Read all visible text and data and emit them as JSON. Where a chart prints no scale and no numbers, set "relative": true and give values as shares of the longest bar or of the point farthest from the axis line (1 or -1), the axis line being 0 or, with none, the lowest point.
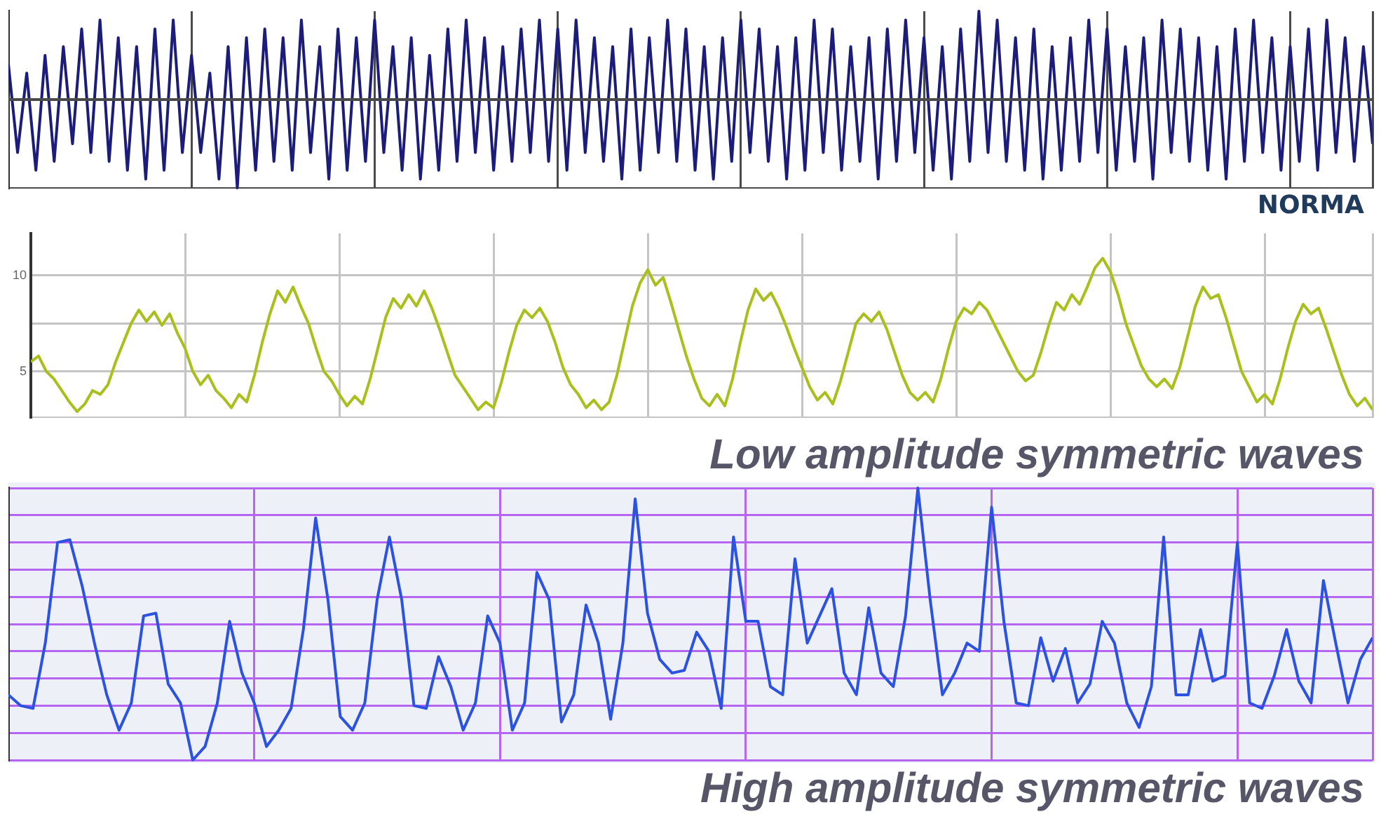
{
  "chart_data": [
    {
      "type": "line",
      "relative": true,
      "grid": "x",
      "legend": false,
      "tick_labels": false,
      "marker": "none",
      "annotations": [
        "NORMA"
      ],
      "categories": [
        null,
        null,
        null,
        null,
        null,
        null,
        null,
        null,
        null,
        null,
        null,
        null,
        null,
        null,
        null,
        null,
        null,
        null,
        null,
        null,
        null,
        null,
        null,
        null,
        null,
        null,
        null,
        null,
        null,
        null,
        null,
        null,
        null,
        null,
        null,
        null,
        null,
        null,
        null,
        null,
        null,
        null,
        null,
        null,
        null,
        null,
        null,
        null,
        null,
        null,
        null,
        null,
        null,
        null,
        null,
        null,
        null,
        null,
        null,
        null,
        null,
        null,
        null,
        null,
        null,
        null,
        null,
        null,
        null,
        null,
        null,
        null,
        null,
        null,
        null,
        null,
        null,
        null,
        null,
        null,
        null,
        null,
        null,
        null,
        null,
        null,
        null,
        null,
        null,
        null,
        null,
        null,
        null,
        null,
        null,
        null,
        null,
        null,
        null,
        null,
        null,
        null,
        null,
        null,
        null,
        null,
        null,
        null,
        null,
        null,
        null,
        null,
        null,
        null,
        null,
        null,
        null,
        null,
        null,
        null,
        null,
        null,
        null,
        null,
        null,
        null,
        null,
        null,
        null,
        null,
        null,
        null,
        null,
        null,
        null,
        null,
        null,
        null,
        null,
        null,
        null,
        null,
        null,
        null,
        null,
        null,
        null,
        null,
        null,
        null
      ],
      "series": [
        {
          "color": "#1c1c7a",
          "values": [
            0.4,
            -0.6,
            0.3,
            -0.8,
            0.5,
            -0.7,
            0.6,
            -0.5,
            0.8,
            -0.6,
            0.9,
            -0.7,
            0.7,
            -0.8,
            0.6,
            -0.9,
            0.8,
            -0.8,
            0.9,
            -0.6,
            0.5,
            -0.6,
            0.3,
            -0.9,
            0.6,
            -1.0,
            0.7,
            -0.8,
            0.8,
            -0.7,
            0.7,
            -0.8,
            0.9,
            -0.6,
            0.6,
            -0.9,
            0.8,
            -0.8,
            0.7,
            -0.7,
            0.9,
            -0.6,
            0.6,
            -0.8,
            0.7,
            -0.9,
            0.5,
            -0.8,
            0.8,
            -0.7,
            0.9,
            -0.6,
            0.7,
            -0.8,
            0.6,
            -0.7,
            0.8,
            -0.6,
            0.9,
            -0.7,
            0.8,
            -0.8,
            0.9,
            -0.6,
            0.7,
            -0.7,
            0.6,
            -0.9,
            0.8,
            -0.8,
            0.7,
            -0.6,
            0.9,
            -0.7,
            0.8,
            -0.8,
            0.6,
            -0.9,
            0.7,
            -0.7,
            0.9,
            -0.6,
            0.8,
            -0.7,
            0.6,
            -0.9,
            0.7,
            -0.8,
            0.9,
            -0.6,
            0.8,
            -0.8,
            0.6,
            -0.7,
            0.7,
            -0.9,
            0.8,
            -0.7,
            0.9,
            -0.6,
            0.7,
            -0.8,
            0.6,
            -0.9,
            0.8,
            -0.7,
            1.0,
            -0.6,
            0.9,
            -0.7,
            0.7,
            -0.8,
            0.8,
            -0.9,
            0.6,
            -0.8,
            0.7,
            -0.7,
            0.9,
            -0.6,
            0.8,
            -0.8,
            0.6,
            -0.7,
            0.7,
            -0.9,
            0.9,
            -0.6,
            0.8,
            -0.7,
            0.7,
            -0.8,
            0.6,
            -0.9,
            0.8,
            -0.7,
            0.9,
            -0.6,
            0.7,
            -0.8,
            0.6,
            -0.7,
            0.8,
            -0.8,
            0.9,
            -0.6,
            0.7,
            -0.7,
            0.6,
            -0.5
          ]
        }
      ]
    },
    {
      "type": "line",
      "grid": true,
      "legend": false,
      "tick_labels": "y",
      "marker": "none",
      "annotations": [
        "Low amplitude symmetric waves"
      ],
      "ylim": [
        2.6,
        12.2
      ],
      "yticks": [
        5,
        {
          "value": 7.5,
          "label": null
        },
        10
      ],
      "categories": [
        null,
        null,
        null,
        null,
        null,
        null,
        null,
        null,
        null,
        null,
        null,
        null,
        null,
        null,
        null,
        null,
        null,
        null,
        null,
        null,
        null,
        null,
        null,
        null,
        null,
        null,
        null,
        null,
        null,
        null,
        null,
        null,
        null,
        null,
        null,
        null,
        null,
        null,
        null,
        null,
        null,
        null,
        null,
        null,
        null,
        null,
        null,
        null,
        null,
        null,
        null,
        null,
        null,
        null,
        null,
        null,
        null,
        null,
        null,
        null,
        null,
        null,
        null,
        null,
        null,
        null,
        null,
        null,
        null,
        null,
        null,
        null,
        null,
        null,
        null,
        null,
        null,
        null,
        null,
        null,
        null,
        null,
        null,
        null,
        null,
        null,
        null,
        null,
        null,
        null,
        null,
        null,
        null,
        null,
        null,
        null,
        null,
        null,
        null,
        null,
        null,
        null,
        null,
        null,
        null,
        null,
        null,
        null,
        null,
        null,
        null,
        null,
        null,
        null,
        null,
        null,
        null,
        null,
        null,
        null,
        null,
        null,
        null,
        null,
        null,
        null,
        null,
        null,
        null,
        null,
        null,
        null,
        null,
        null,
        null,
        null,
        null,
        null,
        null,
        null,
        null,
        null,
        null,
        null,
        null,
        null,
        null,
        null,
        null,
        null,
        null,
        null,
        null,
        null,
        null,
        null,
        null,
        null,
        null,
        null,
        null,
        null,
        null,
        null,
        null,
        null,
        null,
        null,
        null,
        null,
        null,
        null,
        null,
        null,
        null
      ],
      "series": [
        {
          "color": "#a9bf1c",
          "values": [
            5.5,
            5.8,
            5,
            4.6,
            4,
            3.4,
            2.9,
            3.3,
            4,
            3.8,
            4.3,
            5.5,
            6.5,
            7.5,
            8.2,
            7.6,
            8.1,
            7.4,
            8,
            7,
            6.2,
            5,
            4.3,
            4.8,
            4,
            3.6,
            3.1,
            3.8,
            3.4,
            4.8,
            6.5,
            8,
            9.2,
            8.6,
            9.4,
            8.4,
            7.5,
            6.2,
            5,
            4.5,
            3.8,
            3.2,
            3.7,
            3.3,
            4.6,
            6.2,
            7.8,
            8.8,
            8.3,
            9,
            8.4,
            9.2,
            8.3,
            7.2,
            6,
            4.8,
            4.2,
            3.6,
            3,
            3.4,
            3.1,
            4.4,
            6,
            7.4,
            8.2,
            7.8,
            8.3,
            7.6,
            6.5,
            5.2,
            4.3,
            3.8,
            3.1,
            3.5,
            3,
            3.4,
            4.8,
            6.6,
            8.4,
            9.6,
            10.3,
            9.5,
            9.9,
            8.6,
            7.2,
            5.8,
            4.6,
            3.6,
            3.2,
            3.8,
            3.2,
            4.6,
            6.5,
            8.2,
            9.3,
            8.7,
            9.1,
            8.3,
            7.3,
            6.2,
            5.2,
            4.2,
            3.5,
            3.9,
            3.3,
            4.5,
            6,
            7.5,
            8,
            7.6,
            8.1,
            7.2,
            6,
            4.8,
            3.9,
            3.5,
            3.9,
            3.4,
            4.6,
            6.2,
            7.6,
            8.3,
            8,
            8.6,
            8.2,
            7.4,
            6.6,
            5.8,
            5,
            4.5,
            4.8,
            6,
            7.4,
            8.6,
            8.2,
            9,
            8.5,
            9.4,
            10.4,
            10.9,
            10.2,
            9,
            7.5,
            6.4,
            5.3,
            4.6,
            4.2,
            4.6,
            4.1,
            5.2,
            6.8,
            8.4,
            9.4,
            8.8,
            9,
            7.8,
            6.4,
            5,
            4.2,
            3.4,
            3.8,
            3.3,
            4.6,
            6.2,
            7.6,
            8.5,
            8,
            8.3,
            7.2,
            6,
            4.8,
            3.8,
            3.2,
            3.6,
            3
          ]
        }
      ]
    },
    {
      "type": "line",
      "relative": true,
      "grid": true,
      "legend": false,
      "tick_labels": false,
      "marker": "none",
      "annotations": [
        "High amplitude symmetric waves"
      ],
      "categories": [
        null,
        null,
        null,
        null,
        null,
        null,
        null,
        null,
        null,
        null,
        null,
        null,
        null,
        null,
        null,
        null,
        null,
        null,
        null,
        null,
        null,
        null,
        null,
        null,
        null,
        null,
        null,
        null,
        null,
        null,
        null,
        null,
        null,
        null,
        null,
        null,
        null,
        null,
        null,
        null,
        null,
        null,
        null,
        null,
        null,
        null,
        null,
        null,
        null,
        null,
        null,
        null,
        null,
        null,
        null,
        null,
        null,
        null,
        null,
        null,
        null,
        null,
        null,
        null,
        null,
        null,
        null,
        null,
        null,
        null,
        null,
        null,
        null,
        null,
        null,
        null,
        null,
        null,
        null,
        null,
        null,
        null,
        null,
        null,
        null,
        null,
        null,
        null,
        null,
        null,
        null,
        null,
        null,
        null,
        null,
        null,
        null,
        null,
        null,
        null,
        null,
        null,
        null,
        null,
        null,
        null,
        null,
        null,
        null,
        null,
        null,
        null
      ],
      "series": [
        {
          "color": "#2b52e0",
          "values": [
            0.24,
            0.2,
            0.19,
            0.43,
            0.8,
            0.81,
            0.64,
            0.43,
            0.24,
            0.11,
            0.21,
            0.53,
            0.54,
            0.28,
            0.21,
            0,
            0.05,
            0.21,
            0.51,
            0.32,
            0.21,
            0.05,
            0.11,
            0.19,
            0.48,
            0.89,
            0.59,
            0.16,
            0.11,
            0.21,
            0.59,
            0.82,
            0.59,
            0.2,
            0.19,
            0.38,
            0.27,
            0.11,
            0.21,
            0.53,
            0.43,
            0.11,
            0.21,
            0.69,
            0.59,
            0.14,
            0.24,
            0.57,
            0.43,
            0.15,
            0.43,
            0.96,
            0.54,
            0.37,
            0.32,
            0.33,
            0.47,
            0.4,
            0.19,
            0.82,
            0.51,
            0.51,
            0.27,
            0.24,
            0.74,
            0.43,
            0.53,
            0.63,
            0.32,
            0.24,
            0.56,
            0.32,
            0.27,
            0.53,
            1.0,
            0.59,
            0.24,
            0.32,
            0.43,
            0.4,
            0.93,
            0.51,
            0.21,
            0.2,
            0.45,
            0.29,
            0.41,
            0.21,
            0.28,
            0.51,
            0.43,
            0.21,
            0.12,
            0.27,
            0.82,
            0.24,
            0.24,
            0.48,
            0.29,
            0.31,
            0.8,
            0.21,
            0.19,
            0.31,
            0.48,
            0.29,
            0.21,
            0.66,
            0.43,
            0.21,
            0.37,
            0.45
          ]
        }
      ]
    }
  ]
}
